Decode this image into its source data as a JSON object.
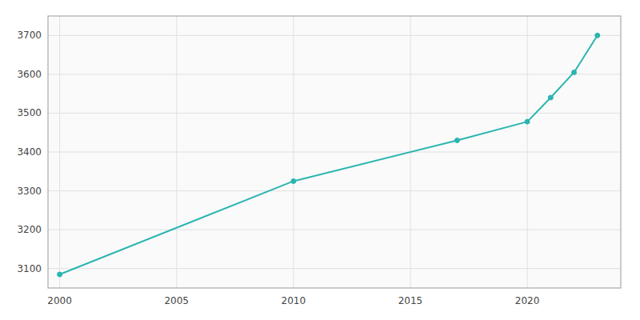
{
  "chart_data": {
    "type": "line",
    "x": [
      2000,
      2010,
      2017,
      2020,
      2021,
      2022,
      2023
    ],
    "values": [
      3085,
      3325,
      3430,
      3478,
      3540,
      3605,
      3700
    ],
    "color": "#2ab5b0",
    "marker": "circle",
    "xlim": [
      1999.5,
      2024
    ],
    "ylim": [
      3050,
      3750
    ],
    "xticks": [
      2000,
      2005,
      2010,
      2015,
      2020
    ],
    "yticks": [
      3100,
      3200,
      3300,
      3400,
      3500,
      3600,
      3700
    ],
    "grid": true
  }
}
